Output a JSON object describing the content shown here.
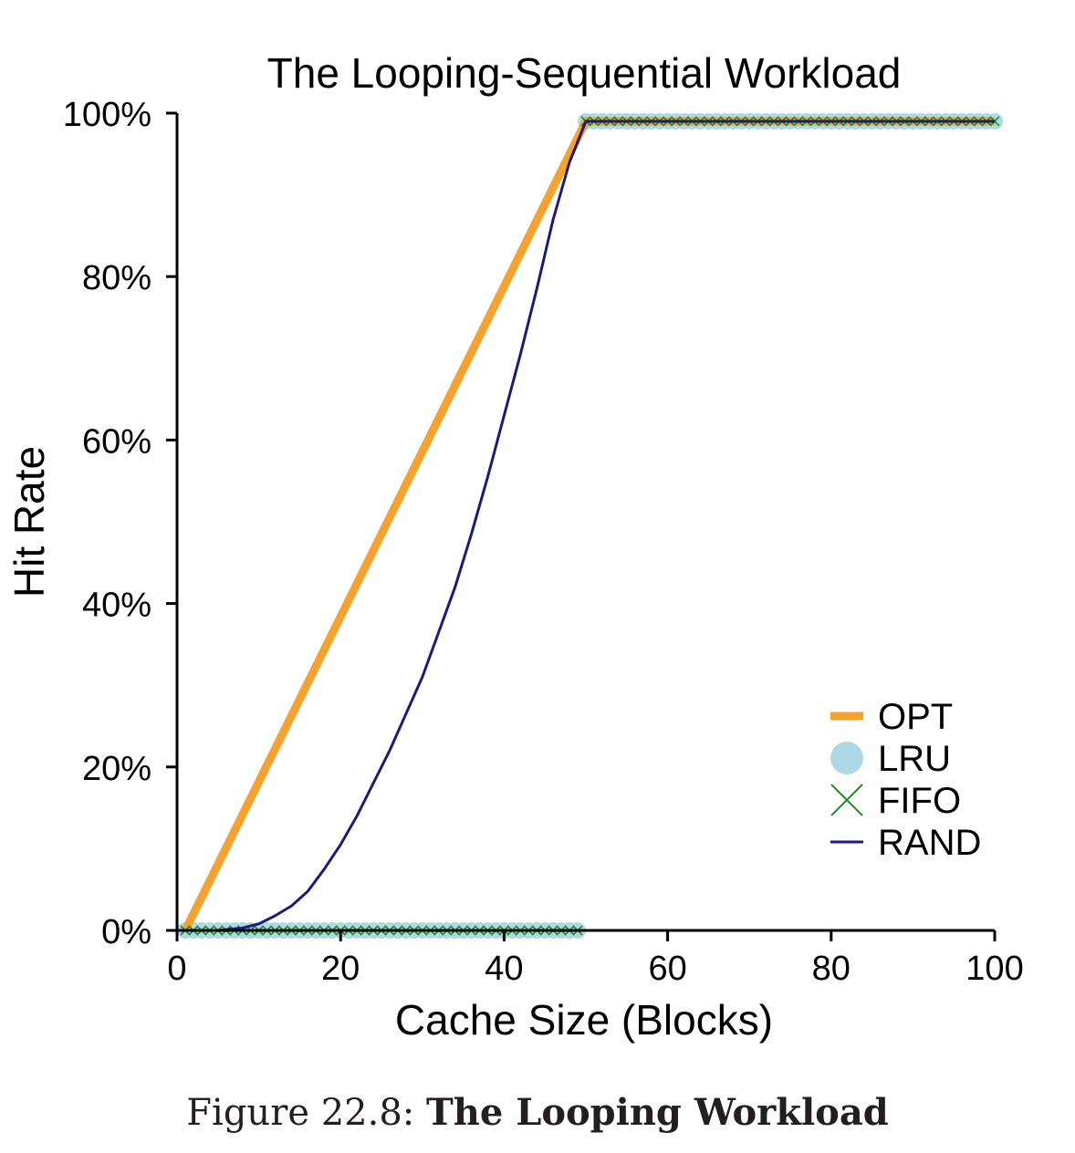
{
  "chart_data": {
    "type": "line",
    "title": "The Looping-Sequential Workload",
    "xlabel": "Cache Size (Blocks)",
    "ylabel": "Hit Rate",
    "xlim": [
      0,
      100
    ],
    "ylim": [
      0,
      100
    ],
    "x_ticks": [
      "0",
      "20",
      "40",
      "60",
      "80",
      "100"
    ],
    "y_ticks": [
      "0%",
      "20%",
      "40%",
      "60%",
      "80%",
      "100%"
    ],
    "grid": false,
    "legend_position": "bottom-right",
    "series": [
      {
        "name": "OPT",
        "color": "#f7a22e",
        "style": "thick-line",
        "x": [
          1,
          50,
          51,
          60,
          70,
          80,
          90,
          100
        ],
        "y": [
          0,
          99,
          99,
          99,
          99,
          99,
          99,
          99
        ]
      },
      {
        "name": "LRU",
        "color": "#add8e6",
        "style": "circle-markers",
        "x": [
          1,
          49,
          50,
          100
        ],
        "y": [
          0,
          0,
          99,
          99
        ]
      },
      {
        "name": "FIFO",
        "color": "#228b22",
        "style": "x-markers",
        "x": [
          1,
          49,
          50,
          100
        ],
        "y": [
          0,
          0,
          99,
          99
        ]
      },
      {
        "name": "RAND",
        "color": "#1a1a80",
        "style": "thin-line",
        "x": [
          1,
          5,
          8,
          10,
          12,
          14,
          16,
          18,
          20,
          22,
          24,
          26,
          28,
          30,
          32,
          34,
          36,
          38,
          40,
          42,
          44,
          46,
          48,
          50,
          60,
          70,
          80,
          90,
          100
        ],
        "y": [
          0,
          0,
          0.3,
          0.8,
          1.8,
          3,
          4.8,
          7.5,
          10.5,
          14,
          18,
          22,
          26.5,
          31,
          36.5,
          42,
          48.5,
          55.5,
          63,
          70.5,
          78.5,
          87,
          94,
          99,
          99,
          99,
          99,
          99,
          99
        ]
      }
    ]
  },
  "caption": {
    "prefix": "Figure 22.8: ",
    "title": "The Looping Workload"
  }
}
